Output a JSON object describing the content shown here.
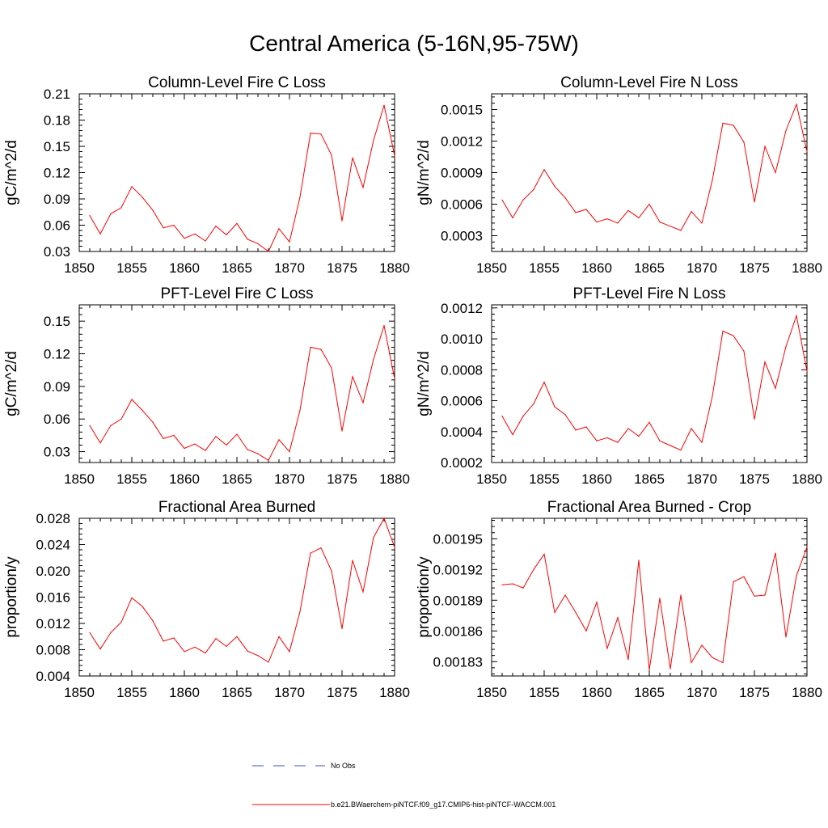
{
  "figure_title": "Central America (5-16N,95-75W)",
  "colors": {
    "model": "#ff0000",
    "obs": "#3b4fb8",
    "axis": "#000000"
  },
  "legend": {
    "obs_label": "No Obs",
    "model_label": "b.e21.BWaerchem-piNTCF.f09_g17.CMIP6-hist-piNTCF-WACCM.001"
  },
  "chart_data": [
    {
      "type": "line",
      "title": "Column-Level Fire C Loss",
      "ylabel": "gC/m^2/d",
      "xlim": [
        1850,
        1880
      ],
      "ylim": [
        0.03,
        0.21
      ],
      "xticks": [
        1850,
        1855,
        1860,
        1865,
        1870,
        1875,
        1880
      ],
      "yticks": [
        0.03,
        0.06,
        0.09,
        0.12,
        0.15,
        0.18,
        0.21
      ],
      "ytick_labels": [
        "0.03",
        "0.06",
        "0.09",
        "0.12",
        "0.15",
        "0.18",
        "0.21"
      ],
      "x": [
        1851,
        1852,
        1853,
        1854,
        1855,
        1856,
        1857,
        1858,
        1859,
        1860,
        1861,
        1862,
        1863,
        1864,
        1865,
        1866,
        1867,
        1868,
        1869,
        1870,
        1871,
        1872,
        1873,
        1874,
        1875,
        1876,
        1877,
        1878,
        1879,
        1880
      ],
      "values": [
        0.071,
        0.05,
        0.073,
        0.08,
        0.104,
        0.092,
        0.077,
        0.057,
        0.06,
        0.045,
        0.05,
        0.042,
        0.059,
        0.049,
        0.062,
        0.044,
        0.039,
        0.03,
        0.056,
        0.041,
        0.092,
        0.165,
        0.164,
        0.14,
        0.065,
        0.137,
        0.103,
        0.157,
        0.197,
        0.139
      ]
    },
    {
      "type": "line",
      "title": "Column-Level Fire N Loss",
      "ylabel": "gN/m^2/d",
      "xlim": [
        1850,
        1880
      ],
      "ylim": [
        0.00015,
        0.00165
      ],
      "xticks": [
        1850,
        1855,
        1860,
        1865,
        1870,
        1875,
        1880
      ],
      "yticks": [
        0.0003,
        0.0006,
        0.0009,
        0.0012,
        0.0015
      ],
      "ytick_labels": [
        "0.0003",
        "0.0006",
        "0.0009",
        "0.0012",
        "0.0015"
      ],
      "x": [
        1851,
        1852,
        1853,
        1854,
        1855,
        1856,
        1857,
        1858,
        1859,
        1860,
        1861,
        1862,
        1863,
        1864,
        1865,
        1866,
        1867,
        1868,
        1869,
        1870,
        1871,
        1872,
        1873,
        1874,
        1875,
        1876,
        1877,
        1878,
        1879,
        1880
      ],
      "values": [
        0.00064,
        0.00047,
        0.00064,
        0.00074,
        0.00093,
        0.00077,
        0.00066,
        0.00052,
        0.00055,
        0.00043,
        0.00046,
        0.00042,
        0.00054,
        0.00047,
        0.0006,
        0.00043,
        0.00039,
        0.00035,
        0.00053,
        0.00042,
        0.00083,
        0.00137,
        0.00135,
        0.00119,
        0.00062,
        0.00115,
        0.0009,
        0.0013,
        0.00155,
        0.0011
      ]
    },
    {
      "type": "line",
      "title": "PFT-Level Fire C Loss",
      "ylabel": "gC/m^2/d",
      "xlim": [
        1850,
        1880
      ],
      "ylim": [
        0.02,
        0.165
      ],
      "xticks": [
        1850,
        1855,
        1860,
        1865,
        1870,
        1875,
        1880
      ],
      "yticks": [
        0.03,
        0.06,
        0.09,
        0.12,
        0.15
      ],
      "ytick_labels": [
        "0.03",
        "0.06",
        "0.09",
        "0.12",
        "0.15"
      ],
      "x": [
        1851,
        1852,
        1853,
        1854,
        1855,
        1856,
        1857,
        1858,
        1859,
        1860,
        1861,
        1862,
        1863,
        1864,
        1865,
        1866,
        1867,
        1868,
        1869,
        1870,
        1871,
        1872,
        1873,
        1874,
        1875,
        1876,
        1877,
        1878,
        1879,
        1880
      ],
      "values": [
        0.054,
        0.038,
        0.054,
        0.06,
        0.078,
        0.068,
        0.057,
        0.042,
        0.045,
        0.033,
        0.037,
        0.031,
        0.044,
        0.036,
        0.046,
        0.032,
        0.028,
        0.022,
        0.041,
        0.03,
        0.068,
        0.126,
        0.124,
        0.107,
        0.049,
        0.099,
        0.075,
        0.115,
        0.146,
        0.097
      ]
    },
    {
      "type": "line",
      "title": "PFT-Level Fire N Loss",
      "ylabel": "gN/m^2/d",
      "xlim": [
        1850,
        1880
      ],
      "ylim": [
        0.0002,
        0.00122
      ],
      "xticks": [
        1850,
        1855,
        1860,
        1865,
        1870,
        1875,
        1880
      ],
      "yticks": [
        0.0002,
        0.0004,
        0.0006,
        0.0008,
        0.001,
        0.0012
      ],
      "ytick_labels": [
        "0.0002",
        "0.0004",
        "0.0006",
        "0.0008",
        "0.0010",
        "0.0012"
      ],
      "x": [
        1851,
        1852,
        1853,
        1854,
        1855,
        1856,
        1857,
        1858,
        1859,
        1860,
        1861,
        1862,
        1863,
        1864,
        1865,
        1866,
        1867,
        1868,
        1869,
        1870,
        1871,
        1872,
        1873,
        1874,
        1875,
        1876,
        1877,
        1878,
        1879,
        1880
      ],
      "values": [
        0.0005,
        0.00038,
        0.0005,
        0.00058,
        0.00072,
        0.00056,
        0.00051,
        0.00041,
        0.00043,
        0.00034,
        0.00036,
        0.00033,
        0.00042,
        0.00037,
        0.00046,
        0.00034,
        0.00031,
        0.00028,
        0.00042,
        0.00033,
        0.00063,
        0.00105,
        0.00102,
        0.00092,
        0.00048,
        0.00085,
        0.00068,
        0.00095,
        0.00115,
        0.00079
      ]
    },
    {
      "type": "line",
      "title": "Fractional Area Burned",
      "ylabel": "proportion/y",
      "xlim": [
        1850,
        1880
      ],
      "ylim": [
        0.004,
        0.028
      ],
      "xticks": [
        1850,
        1855,
        1860,
        1865,
        1870,
        1875,
        1880
      ],
      "yticks": [
        0.004,
        0.008,
        0.012,
        0.016,
        0.02,
        0.024,
        0.028
      ],
      "ytick_labels": [
        "0.004",
        "0.008",
        "0.012",
        "0.016",
        "0.020",
        "0.024",
        "0.028"
      ],
      "x": [
        1851,
        1852,
        1853,
        1854,
        1855,
        1856,
        1857,
        1858,
        1859,
        1860,
        1861,
        1862,
        1863,
        1864,
        1865,
        1866,
        1867,
        1868,
        1869,
        1870,
        1871,
        1872,
        1873,
        1874,
        1875,
        1876,
        1877,
        1878,
        1879,
        1880
      ],
      "values": [
        0.0106,
        0.0081,
        0.0106,
        0.0122,
        0.0159,
        0.0146,
        0.0124,
        0.0093,
        0.0098,
        0.0077,
        0.0084,
        0.0075,
        0.0097,
        0.0085,
        0.01,
        0.0078,
        0.0071,
        0.0061,
        0.01,
        0.0077,
        0.0138,
        0.0227,
        0.0235,
        0.02,
        0.0112,
        0.0216,
        0.0168,
        0.0251,
        0.028,
        0.0236
      ]
    },
    {
      "type": "line",
      "title": "Fractional Area Burned - Crop",
      "ylabel": "proportion/y",
      "xlim": [
        1850,
        1880
      ],
      "ylim": [
        0.001816,
        0.00197
      ],
      "xticks": [
        1850,
        1855,
        1860,
        1865,
        1870,
        1875,
        1880
      ],
      "yticks": [
        0.00183,
        0.00186,
        0.00189,
        0.00192,
        0.00195
      ],
      "ytick_labels": [
        "0.00183",
        "0.00186",
        "0.00189",
        "0.00192",
        "0.00195"
      ],
      "x": [
        1851,
        1852,
        1853,
        1854,
        1855,
        1856,
        1857,
        1858,
        1859,
        1860,
        1861,
        1862,
        1863,
        1864,
        1865,
        1866,
        1867,
        1868,
        1869,
        1870,
        1871,
        1872,
        1873,
        1874,
        1875,
        1876,
        1877,
        1878,
        1879,
        1880
      ],
      "values": [
        0.001905,
        0.001906,
        0.001902,
        0.00192,
        0.001935,
        0.001878,
        0.001895,
        0.001878,
        0.00186,
        0.001888,
        0.001843,
        0.001873,
        0.001832,
        0.001929,
        0.001822,
        0.001892,
        0.001823,
        0.001895,
        0.001829,
        0.001846,
        0.001834,
        0.001829,
        0.001908,
        0.001913,
        0.001894,
        0.001895,
        0.001936,
        0.001854,
        0.001914,
        0.001942
      ]
    }
  ]
}
